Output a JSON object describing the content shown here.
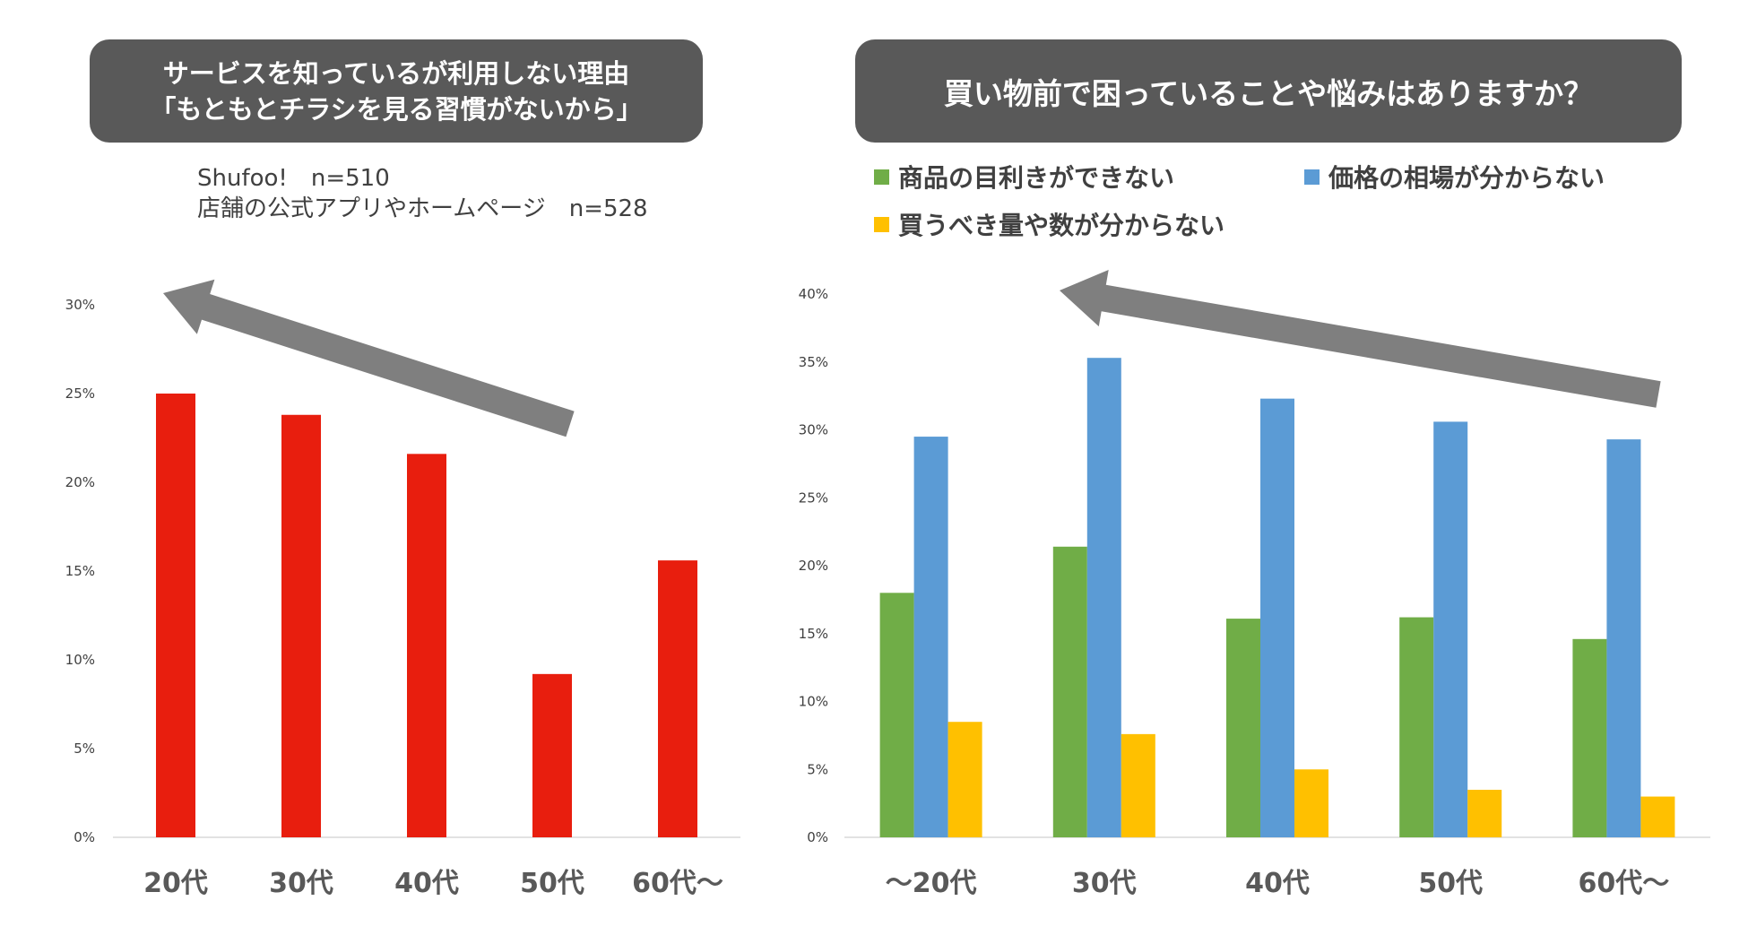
{
  "left_panel": {
    "title_line1": "サービスを知っているが利用しない理由",
    "title_line2": "「もともとチラシを見る習慣がないから」",
    "source_line1": "Shufoo!　n=510",
    "source_line2": "店舗の公式アプリやホームページ　n=528"
  },
  "right_panel": {
    "title": "買い物前で困っていることや悩みはありますか？"
  },
  "colors": {
    "title_bg": "#595959",
    "red": "#E81E0E",
    "green": "#70AD47",
    "blue": "#5B9BD5",
    "yellow": "#FFC000",
    "arrow": "#7F7F7F"
  },
  "chart_data": [
    {
      "type": "bar",
      "title": "サービスを知っているが利用しない理由「もともとチラシを見る習慣がないから」",
      "categories": [
        "20代",
        "30代",
        "40代",
        "50代",
        "60代〜"
      ],
      "series": [
        {
          "name": "もともとチラシを見る習慣がないから",
          "values": [
            25.0,
            23.8,
            21.6,
            9.2,
            15.6
          ]
        }
      ],
      "ylim": [
        0,
        30
      ],
      "yticks": [
        0,
        5,
        10,
        15,
        20,
        25,
        30
      ],
      "ytick_labels": [
        "0%",
        "5%",
        "10%",
        "15%",
        "20%",
        "25%",
        "30%"
      ],
      "xlabel": "",
      "ylabel": "",
      "annotation": "decreasing-trend arrow pointing up-left"
    },
    {
      "type": "bar",
      "title": "買い物前で困っていることや悩みはありますか？",
      "categories": [
        "〜20代",
        "30代",
        "40代",
        "50代",
        "60代〜"
      ],
      "series": [
        {
          "name": "商品の目利きができない",
          "values": [
            18.0,
            21.4,
            16.1,
            16.2,
            14.6
          ]
        },
        {
          "name": "価格の相場が分からない",
          "values": [
            29.5,
            35.3,
            32.3,
            30.6,
            29.3
          ]
        },
        {
          "name": "買うべき量や数が分からない",
          "values": [
            8.5,
            7.6,
            5.0,
            3.5,
            3.0
          ]
        }
      ],
      "ylim": [
        0,
        40
      ],
      "yticks": [
        0,
        5,
        10,
        15,
        20,
        25,
        30,
        35,
        40
      ],
      "ytick_labels": [
        "0%",
        "5%",
        "10%",
        "15%",
        "20%",
        "25%",
        "30%",
        "35%",
        "40%"
      ],
      "legend_position": "top",
      "xlabel": "",
      "ylabel": "",
      "annotation": "arrow pointing up-left"
    }
  ]
}
